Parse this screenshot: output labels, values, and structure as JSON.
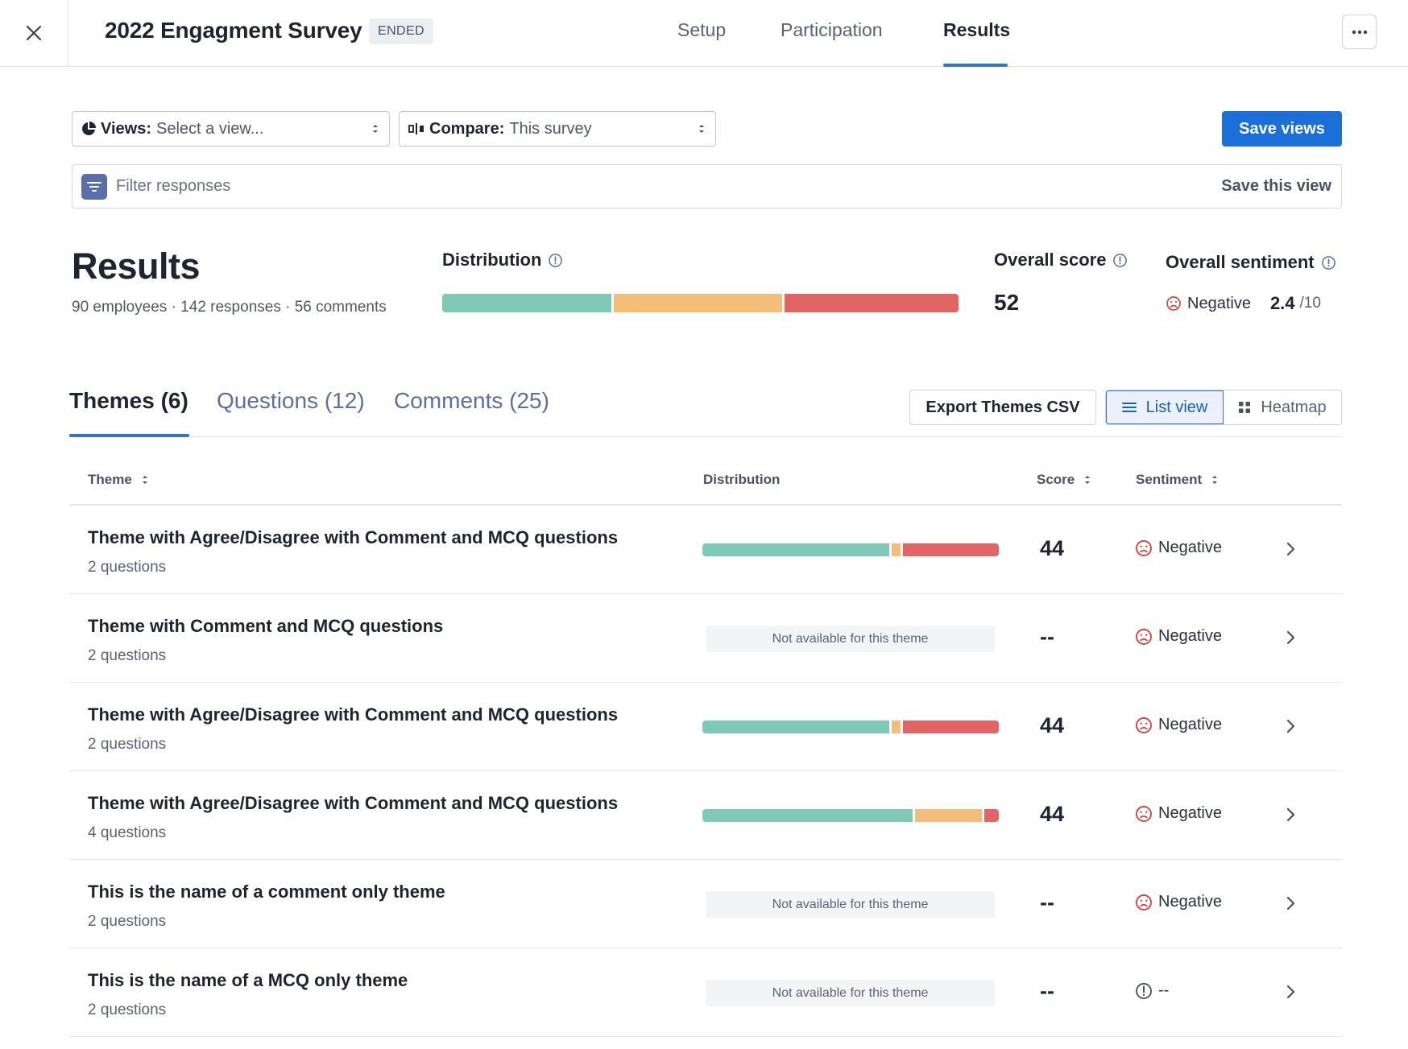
{
  "header": {
    "survey_title": "2022 Engagment Survey",
    "status_badge": "ENDED",
    "tabs": [
      "Setup",
      "Participation",
      "Results"
    ],
    "active_tab": "Results"
  },
  "controls": {
    "views_label": "Views:",
    "views_value": "Select a view...",
    "compare_label": "Compare:",
    "compare_value": "This survey",
    "save_views": "Save views",
    "filter_placeholder": "Filter responses",
    "save_this_view": "Save this view"
  },
  "summary": {
    "title": "Results",
    "meta": "90 employees · 142 responses · 56 comments",
    "distribution_label": "Distribution",
    "distribution": {
      "positive": 0.33,
      "neutral": 0.33,
      "negative": 0.34
    },
    "overall_score_label": "Overall score",
    "overall_score": "52",
    "overall_sentiment_label": "Overall sentiment",
    "overall_sentiment": "Negative",
    "sentiment_score": "2.4",
    "sentiment_outof": "/10"
  },
  "section_tabs": [
    "Themes (6)",
    "Questions (12)",
    "Comments (25)"
  ],
  "toolbar": {
    "export": "Export Themes CSV",
    "list_view": "List view",
    "heatmap": "Heatmap"
  },
  "table": {
    "columns": [
      "Theme",
      "Distribution",
      "Score",
      "Sentiment"
    ],
    "rows": [
      {
        "name": "Theme with Agree/Disagree with Comment and MCQ questions",
        "questions": "2 questions",
        "distribution": {
          "positive": 0.64,
          "neutral": 0.03,
          "negative": 0.33
        },
        "score": "44",
        "sentiment": "Negative"
      },
      {
        "name": "Theme with Comment and MCQ questions",
        "questions": "2 questions",
        "distribution_na": "Not available for this theme",
        "score": "--",
        "sentiment": "Negative"
      },
      {
        "name": "Theme with Agree/Disagree with Comment and MCQ questions",
        "questions": "2 questions",
        "distribution": {
          "positive": 0.64,
          "neutral": 0.03,
          "negative": 0.33
        },
        "score": "44",
        "sentiment": "Negative"
      },
      {
        "name": "Theme with Agree/Disagree with Comment and MCQ questions",
        "questions": "4 questions",
        "distribution": {
          "positive": 0.72,
          "neutral": 0.23,
          "negative": 0.05
        },
        "score": "44",
        "sentiment": "Negative"
      },
      {
        "name": "This is the name of a comment only theme",
        "questions": "2 questions",
        "distribution_na": "Not available for this theme",
        "score": "--",
        "sentiment": "Negative"
      },
      {
        "name": "This is the name of a MCQ only theme",
        "questions": "2 questions",
        "distribution_na": "Not available for this theme",
        "score": "--",
        "sentiment": "--"
      }
    ]
  },
  "colors": {
    "accent": "#1a6fd8",
    "positive": "#7fcab7",
    "neutral": "#f5be78",
    "negative": "#e36464"
  }
}
